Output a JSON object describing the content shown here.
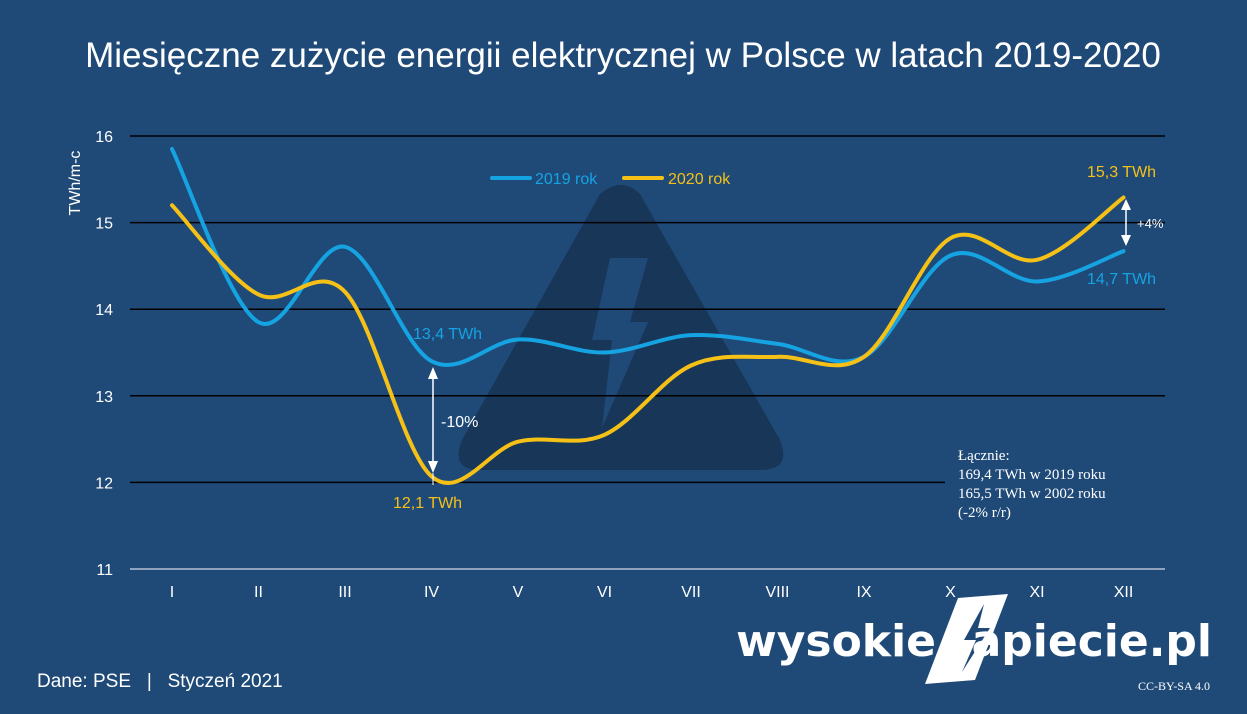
{
  "chart_data": {
    "type": "line",
    "title": "Miesięczne zużycie energii elektrycznej w Polsce w latach 2019-2020",
    "ylabel": "TWh/m-c",
    "xlabel": "",
    "categories": [
      "I",
      "II",
      "III",
      "IV",
      "V",
      "VI",
      "VII",
      "VIII",
      "IX",
      "X",
      "XI",
      "XII"
    ],
    "ylim": [
      11,
      16
    ],
    "yticks": [
      11,
      12,
      13,
      14,
      15,
      16
    ],
    "grid": true,
    "legend_position": "top-center",
    "series": [
      {
        "name": "2019 rok",
        "color": "#16a3e2",
        "values": [
          15.85,
          13.85,
          14.72,
          13.4,
          13.65,
          13.5,
          13.7,
          13.6,
          13.45,
          14.62,
          14.32,
          14.67
        ]
      },
      {
        "name": "2020 rok",
        "color": "#f5c116",
        "values": [
          15.2,
          14.17,
          14.2,
          12.07,
          12.47,
          12.55,
          13.35,
          13.45,
          13.45,
          14.82,
          14.57,
          15.29
        ]
      }
    ],
    "annotations": {
      "apr_2019": "13,4 TWh",
      "apr_2020": "12,1 TWh",
      "apr_diff": "-10%",
      "dec_2020": "15,3 TWh",
      "dec_2019": "14,7 TWh",
      "dec_diff": "+4%"
    },
    "totals": [
      "Łącznie:",
      "169,4 TWh w 2019 roku",
      "165,5 TWh w 2002 roku",
      "(-2% r/r)"
    ]
  },
  "footer": {
    "source": "Dane: PSE   |   Styczeń 2021",
    "brand_left": "wysokie",
    "brand_right": "apiecie.pl",
    "license": "CC-BY-SA 4.0"
  },
  "colors": {
    "background": "#1f4a78",
    "watermark": "#183658",
    "grid": "#000000"
  }
}
